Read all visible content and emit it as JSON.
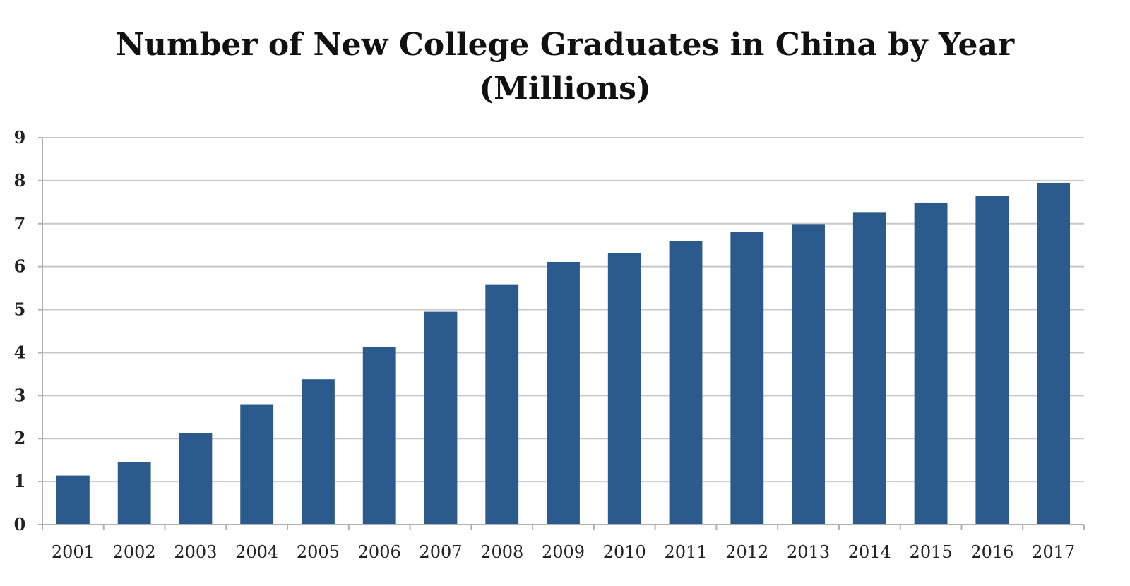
{
  "chart_data": {
    "type": "bar",
    "title": "Number of New College Graduates in China by Year",
    "subtitle": "(Millions)",
    "xlabel": "",
    "ylabel": "",
    "categories": [
      "2001",
      "2002",
      "2003",
      "2004",
      "2005",
      "2006",
      "2007",
      "2008",
      "2009",
      "2010",
      "2011",
      "2012",
      "2013",
      "2014",
      "2015",
      "2016",
      "2017"
    ],
    "values": [
      1.14,
      1.45,
      2.12,
      2.8,
      3.38,
      4.13,
      4.95,
      5.59,
      6.11,
      6.31,
      6.6,
      6.8,
      6.99,
      7.27,
      7.49,
      7.65,
      7.95
    ],
    "ylim": [
      0,
      9
    ],
    "yticks": [
      "0",
      "1",
      "2",
      "3",
      "4",
      "5",
      "6",
      "7",
      "8",
      "9"
    ],
    "grid": true,
    "legend": "none",
    "colors": {
      "bar": "#2b5b8c",
      "grid": "#c8c8c8",
      "axis": "#b0b0b0"
    }
  }
}
